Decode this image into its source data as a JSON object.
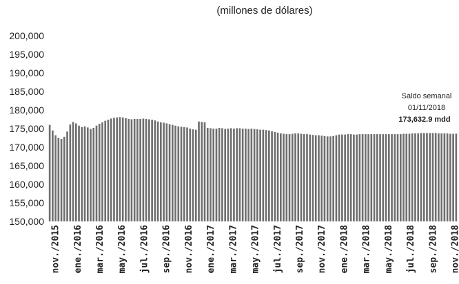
{
  "chart_data": {
    "type": "bar",
    "subtitle": "(millones de dólares)",
    "ylim": [
      150000,
      200000
    ],
    "yticks": [
      "150,000",
      "155,000",
      "160,000",
      "165,000",
      "170,000",
      "175,000",
      "180,000",
      "185,000",
      "190,000",
      "195,000",
      "200,000"
    ],
    "xticks": [
      "nov./2015",
      "ene./2016",
      "mar./2016",
      "may./2016",
      "jul./2016",
      "sep./2016",
      "nov./2016",
      "ene./2017",
      "mar./2017",
      "may./2017",
      "jul./2017",
      "sep./2017",
      "nov./2017",
      "ene./2018",
      "mar./2018",
      "may./2018",
      "jul./2018",
      "sep./2018",
      "nov./2018"
    ],
    "grid": false,
    "legend": "none",
    "bar_color": "#6e6e6e",
    "annotation": {
      "label": "Saldo semanal",
      "date": "01/11/2018",
      "value_text": "173,632.9 mdd"
    },
    "values": [
      176000,
      174500,
      173200,
      172500,
      172200,
      172800,
      174200,
      176100,
      176800,
      176400,
      175800,
      175400,
      175600,
      175300,
      174900,
      175200,
      175800,
      176300,
      176700,
      177100,
      177400,
      177700,
      177900,
      178000,
      178100,
      178000,
      177800,
      177600,
      177500,
      177600,
      177600,
      177600,
      177700,
      177600,
      177500,
      177400,
      177200,
      176900,
      176700,
      176600,
      176400,
      176200,
      176000,
      175800,
      175600,
      175500,
      175400,
      175300,
      175000,
      174800,
      174700,
      176900,
      176800,
      176700,
      175200,
      175100,
      175000,
      175000,
      175200,
      175100,
      174900,
      175000,
      175100,
      175000,
      175100,
      175100,
      175000,
      175000,
      174900,
      175000,
      174900,
      174800,
      174700,
      174700,
      174600,
      174500,
      174300,
      174100,
      173900,
      173700,
      173600,
      173500,
      173500,
      173600,
      173700,
      173700,
      173600,
      173500,
      173500,
      173400,
      173300,
      173200,
      173200,
      173100,
      173000,
      172900,
      172900,
      173000,
      173200,
      173400,
      173400,
      173400,
      173500,
      173500,
      173400,
      173400,
      173500,
      173500,
      173500,
      173500,
      173500,
      173500,
      173500,
      173500,
      173500,
      173500,
      173500,
      173500,
      173500,
      173500,
      173500,
      173600,
      173600,
      173600,
      173700,
      173700,
      173700,
      173800,
      173800,
      173800,
      173800,
      173800,
      173800,
      173700,
      173700,
      173700,
      173700,
      173600,
      173600,
      173632.9
    ]
  }
}
